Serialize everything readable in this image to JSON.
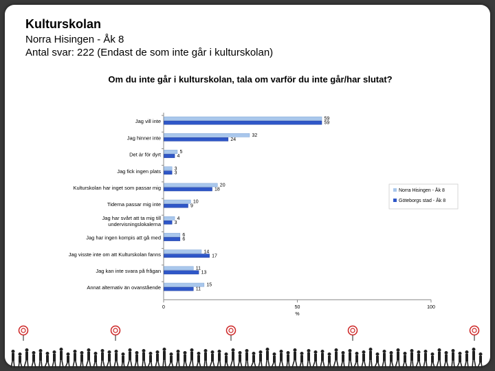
{
  "header": {
    "title": "Kulturskolan",
    "subtitle": "Norra Hisingen - Åk 8",
    "responses": "Antal svar: 222 (Endast de som inte går i kulturskolan)"
  },
  "colors": {
    "series1": "#a9c7ec",
    "series2": "#2f57c8",
    "axis": "#888888",
    "footer_figures": "#222222",
    "footer_target": "#cc2222"
  },
  "chart_data": {
    "type": "bar",
    "orientation": "horizontal",
    "title": "Om du inte går i kulturskolan, tala om varför du inte går/har slutat?",
    "xlabel": "%",
    "xlim": [
      0,
      100
    ],
    "xticks": [
      "0",
      "50",
      "100"
    ],
    "legend_position": "right",
    "categories": [
      "Jag vill inte",
      "Jag hinner inte",
      "Det är för dyrt",
      "Jag fick ingen plats",
      "Kulturskolan har inget som passar mig",
      "Tiderna passar mig inte",
      [
        "Jag har svårt att ta mig till",
        "undervisningslokalerna"
      ],
      "Jag har ingen kompis att gå med",
      "Jag visste inte om att Kulturskolan fanns",
      "Jag kan inte svara på frågan",
      "Annat alternativ än ovanstående"
    ],
    "series": [
      {
        "name": "Norra Hisingen - Åk 8",
        "values": [
          59,
          32,
          5,
          3,
          20,
          10,
          4,
          6,
          14,
          11,
          15
        ]
      },
      {
        "name": "Göteborgs stad - Åk 8",
        "values": [
          59,
          24,
          4,
          3,
          18,
          9,
          3,
          6,
          17,
          13,
          11
        ]
      }
    ]
  }
}
